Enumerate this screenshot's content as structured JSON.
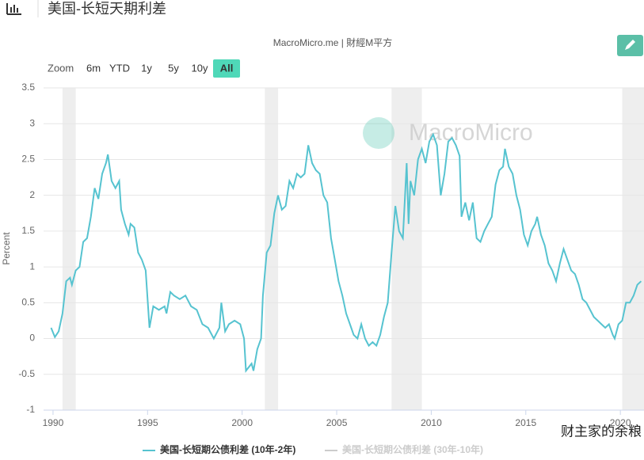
{
  "header": {
    "title": "美国-长短天期利差"
  },
  "chart_data": {
    "type": "line",
    "subtitle": "MacroMicro.me | 財經M平方",
    "watermark": "MacroMicro",
    "corner_watermark": "财主家的余粮",
    "range_selector": {
      "label": "Zoom",
      "buttons": [
        "6m",
        "YTD",
        "1y",
        "5y",
        "10y",
        "All"
      ],
      "selected": 5
    },
    "y_label": "Percent",
    "x": [
      1989.9,
      1990.1,
      1990.3,
      1990.5,
      1990.7,
      1990.9,
      1991.0,
      1991.2,
      1991.4,
      1991.6,
      1991.8,
      1992.0,
      1992.2,
      1992.4,
      1992.6,
      1992.8,
      1992.9,
      1993.1,
      1993.3,
      1993.5,
      1993.6,
      1993.8,
      1994.0,
      1994.1,
      1994.3,
      1994.5,
      1994.7,
      1994.9,
      1995.1,
      1995.3,
      1995.6,
      1995.9,
      1996.0,
      1996.2,
      1996.4,
      1996.7,
      1997.0,
      1997.3,
      1997.6,
      1997.9,
      1998.2,
      1998.5,
      1998.8,
      1998.9,
      1999.1,
      1999.3,
      1999.6,
      1999.9,
      2000.1,
      2000.2,
      2000.5,
      2000.6,
      2000.8,
      2001.0,
      2001.1,
      2001.3,
      2001.5,
      2001.7,
      2001.9,
      2002.1,
      2002.3,
      2002.5,
      2002.7,
      2002.9,
      2003.1,
      2003.3,
      2003.5,
      2003.7,
      2003.9,
      2004.1,
      2004.3,
      2004.5,
      2004.7,
      2004.9,
      2005.1,
      2005.3,
      2005.5,
      2005.7,
      2005.9,
      2006.1,
      2006.3,
      2006.5,
      2006.7,
      2006.9,
      2007.1,
      2007.3,
      2007.5,
      2007.7,
      2007.9,
      2008.1,
      2008.3,
      2008.5,
      2008.7,
      2008.8,
      2008.9,
      2009.1,
      2009.3,
      2009.5,
      2009.7,
      2009.9,
      2010.1,
      2010.3,
      2010.5,
      2010.7,
      2010.9,
      2011.1,
      2011.3,
      2011.5,
      2011.6,
      2011.8,
      2012.0,
      2012.2,
      2012.4,
      2012.6,
      2012.8,
      2013.0,
      2013.2,
      2013.4,
      2013.6,
      2013.8,
      2013.9,
      2014.1,
      2014.3,
      2014.5,
      2014.7,
      2014.9,
      2015.1,
      2015.3,
      2015.5,
      2015.6,
      2015.8,
      2016.0,
      2016.2,
      2016.4,
      2016.6,
      2016.8,
      2017.0,
      2017.2,
      2017.4,
      2017.6,
      2017.8,
      2018.0,
      2018.2,
      2018.4,
      2018.6,
      2018.8,
      2019.0,
      2019.2,
      2019.4,
      2019.6,
      2019.7,
      2019.9,
      2020.1,
      2020.3,
      2020.5,
      2020.7,
      2020.9,
      2021.1
    ],
    "series": [
      {
        "name": "美国-长短期公债利差 (10年-2年)",
        "color": "#56c3d0",
        "visible": true,
        "values": [
          0.15,
          0.02,
          0.1,
          0.35,
          0.8,
          0.85,
          0.75,
          0.95,
          1.0,
          1.35,
          1.4,
          1.7,
          2.1,
          1.95,
          2.3,
          2.45,
          2.57,
          2.2,
          2.1,
          2.2,
          1.8,
          1.6,
          1.45,
          1.6,
          1.55,
          1.2,
          1.1,
          0.95,
          0.15,
          0.45,
          0.4,
          0.45,
          0.35,
          0.65,
          0.6,
          0.55,
          0.6,
          0.45,
          0.4,
          0.2,
          0.15,
          0.0,
          0.15,
          0.5,
          0.1,
          0.2,
          0.25,
          0.2,
          0.0,
          -0.45,
          -0.35,
          -0.45,
          -0.15,
          0.0,
          0.6,
          1.2,
          1.3,
          1.75,
          2.0,
          1.8,
          1.85,
          2.2,
          2.1,
          2.3,
          2.25,
          2.3,
          2.7,
          2.45,
          2.35,
          2.3,
          2.0,
          1.9,
          1.4,
          1.1,
          0.8,
          0.6,
          0.35,
          0.2,
          0.05,
          0.0,
          0.2,
          0.0,
          -0.1,
          -0.05,
          -0.1,
          0.05,
          0.3,
          0.5,
          1.2,
          1.85,
          1.5,
          1.4,
          2.45,
          1.6,
          2.2,
          2.0,
          2.5,
          2.65,
          2.45,
          2.75,
          2.85,
          2.7,
          2.0,
          2.3,
          2.75,
          2.8,
          2.7,
          2.55,
          1.7,
          1.9,
          1.65,
          1.9,
          1.4,
          1.35,
          1.5,
          1.6,
          1.7,
          2.15,
          2.35,
          2.4,
          2.65,
          2.4,
          2.3,
          2.0,
          1.8,
          1.45,
          1.3,
          1.5,
          1.6,
          1.7,
          1.45,
          1.3,
          1.05,
          0.95,
          0.8,
          1.05,
          1.25,
          1.1,
          0.95,
          0.9,
          0.75,
          0.55,
          0.5,
          0.4,
          0.3,
          0.25,
          0.2,
          0.15,
          0.2,
          0.05,
          0.0,
          0.2,
          0.25,
          0.5,
          0.5,
          0.6,
          0.75,
          0.8
        ]
      },
      {
        "name": "美国-长短期公债利差 (30年-10年)",
        "color": "#cccccc",
        "visible": false
      }
    ],
    "recessions": [
      [
        1990.5,
        1991.2
      ],
      [
        2001.2,
        2001.9
      ],
      [
        2007.9,
        2009.5
      ],
      [
        2020.1,
        2021.25
      ]
    ],
    "xlim": [
      1989.5,
      2021.25
    ],
    "xticks": [
      1990,
      1995,
      2000,
      2005,
      2010,
      2015,
      2020
    ],
    "ylim": [
      -1,
      3.5
    ],
    "yticks": [
      -1,
      -0.5,
      0,
      0.5,
      1,
      1.5,
      2,
      2.5,
      3,
      3.5
    ],
    "grid": true
  }
}
